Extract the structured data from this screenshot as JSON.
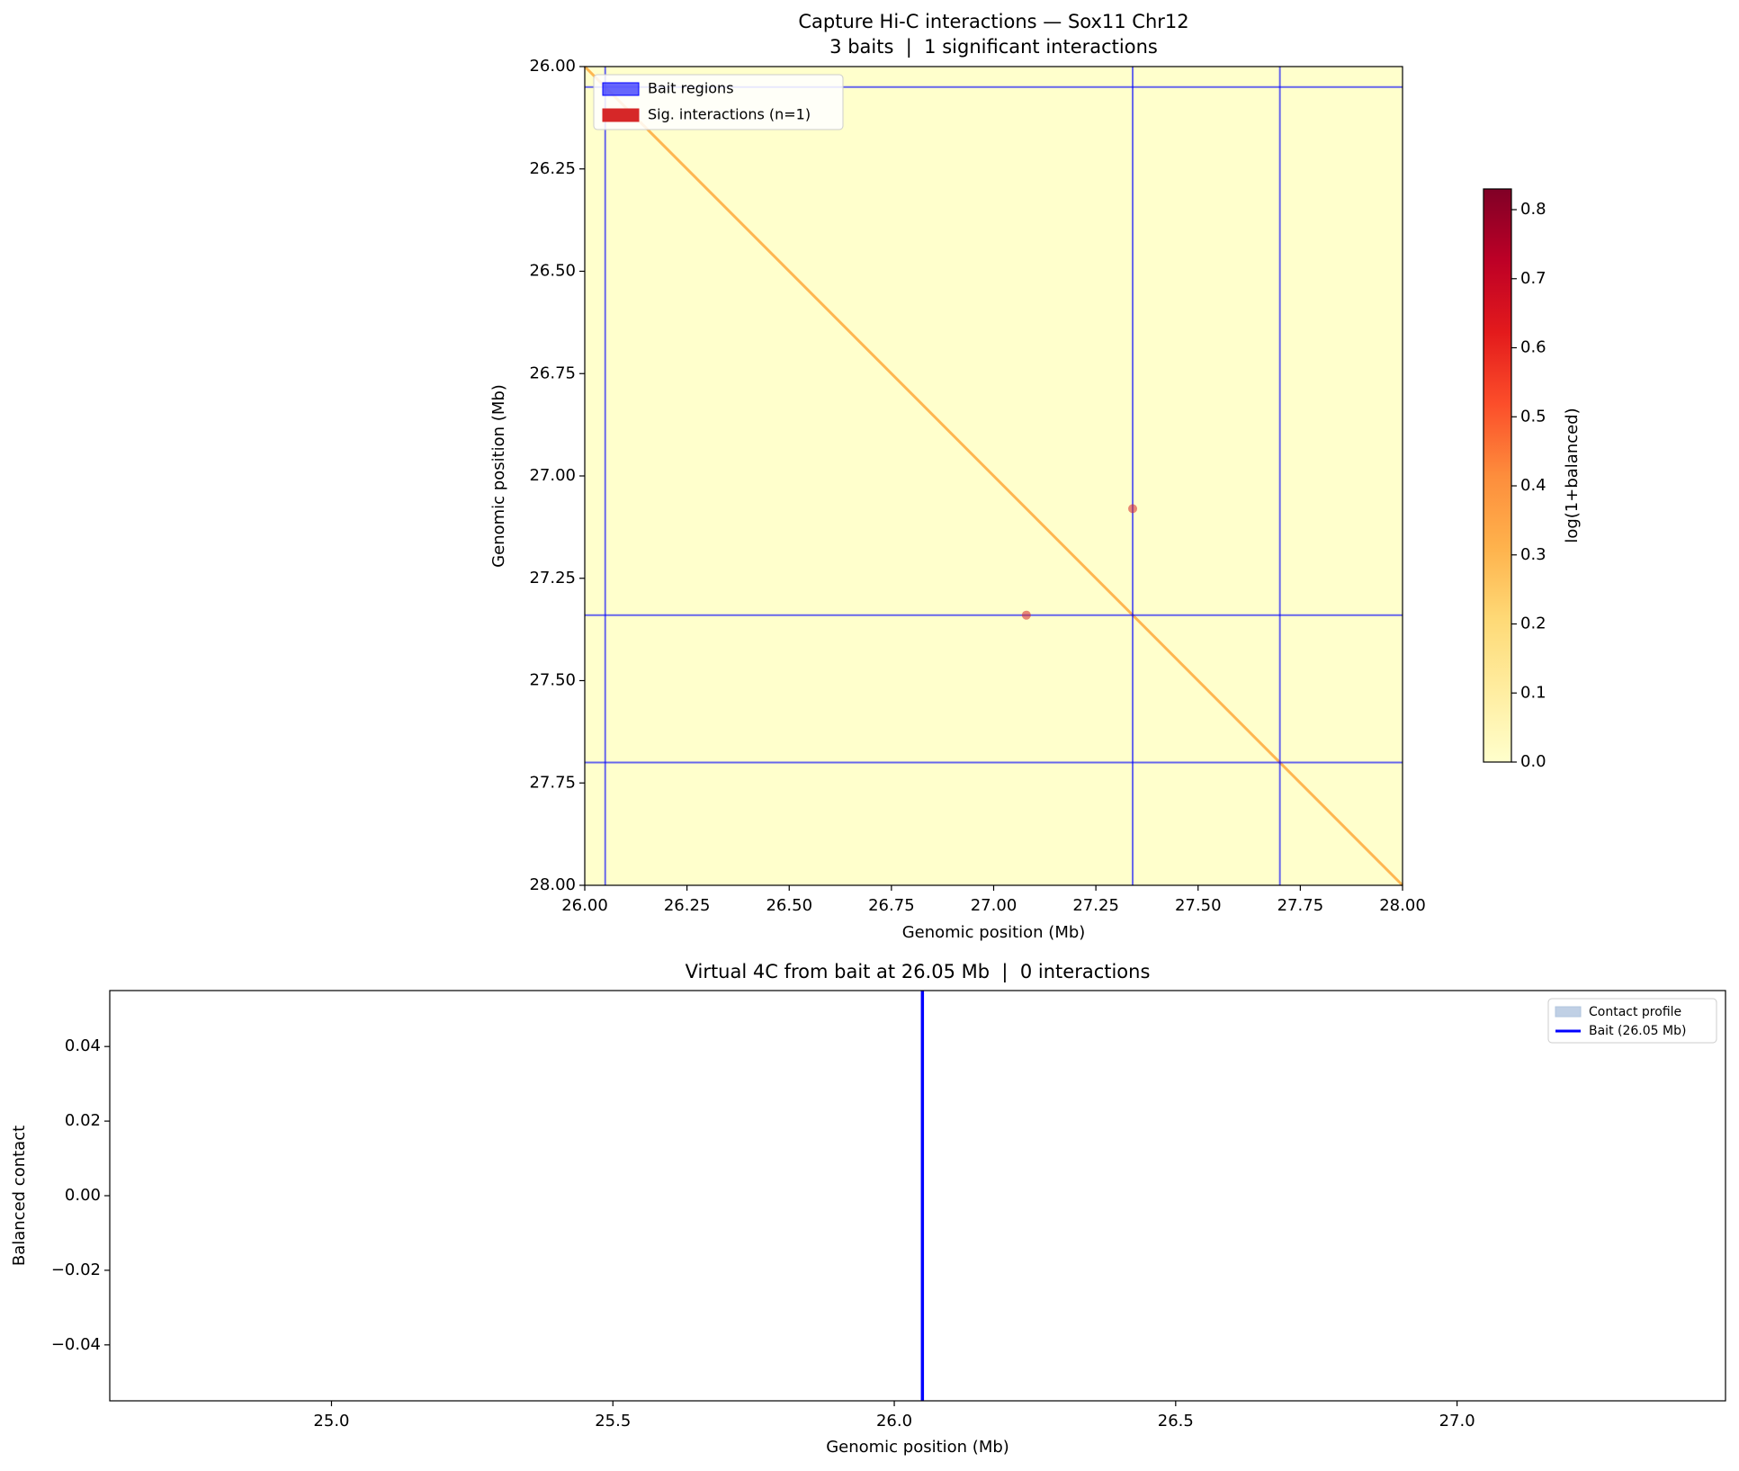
{
  "chart_data": [
    {
      "type": "heatmap",
      "title": "Capture Hi-C interactions — Sox11 Chr12",
      "subtitle": "3 baits  |  1 significant interactions",
      "xlabel": "Genomic position (Mb)",
      "ylabel": "Genomic position (Mb)",
      "xlim": [
        26,
        28
      ],
      "ylim": [
        26,
        28
      ],
      "y_inverted": true,
      "xticks": [
        {
          "value": 26,
          "label": "26.00"
        },
        {
          "value": 26.25,
          "label": "26.25"
        },
        {
          "value": 26.5,
          "label": "26.50"
        },
        {
          "value": 26.75,
          "label": "26.75"
        },
        {
          "value": 27,
          "label": "27.00"
        },
        {
          "value": 27.25,
          "label": "27.25"
        },
        {
          "value": 27.5,
          "label": "27.50"
        },
        {
          "value": 27.75,
          "label": "27.75"
        },
        {
          "value": 28,
          "label": "28.00"
        }
      ],
      "yticks": [
        {
          "value": 26,
          "label": "26.00"
        },
        {
          "value": 26.25,
          "label": "26.25"
        },
        {
          "value": 26.5,
          "label": "26.50"
        },
        {
          "value": 26.75,
          "label": "26.75"
        },
        {
          "value": 27,
          "label": "27.00"
        },
        {
          "value": 27.25,
          "label": "27.25"
        },
        {
          "value": 27.5,
          "label": "27.50"
        },
        {
          "value": 27.75,
          "label": "27.75"
        },
        {
          "value": 28,
          "label": "28.00"
        }
      ],
      "diagonal_value": 0.3,
      "colorbar": {
        "label": "log(1+balanced)",
        "colormap": "YlOrRd",
        "lim": [
          0,
          0.83
        ],
        "ticks": [
          {
            "value": 0,
            "label": "0.0"
          },
          {
            "value": 0.1,
            "label": "0.1"
          },
          {
            "value": 0.2,
            "label": "0.2"
          },
          {
            "value": 0.3,
            "label": "0.3"
          },
          {
            "value": 0.4,
            "label": "0.4"
          },
          {
            "value": 0.5,
            "label": "0.5"
          },
          {
            "value": 0.6,
            "label": "0.6"
          },
          {
            "value": 0.7,
            "label": "0.7"
          },
          {
            "value": 0.8,
            "label": "0.8"
          }
        ]
      },
      "baits": {
        "name": "Bait regions",
        "color": "#0000ff",
        "positions": [
          26.05,
          27.34,
          27.7
        ]
      },
      "significant": {
        "name": "Sig. interactions (n=1)",
        "color": "#d62728",
        "x": [
          27.34,
          27.08
        ],
        "y": [
          27.08,
          27.34
        ]
      },
      "legend": "upper left"
    },
    {
      "type": "line",
      "title": "Virtual 4C from bait at 26.05 Mb  |  0 interactions",
      "xlabel": "Genomic position (Mb)",
      "ylabel": "Balanced contact",
      "xlim": [
        24.606,
        27.477
      ],
      "ylim": [
        -0.055,
        0.055
      ],
      "xticks": [
        {
          "value": 25,
          "label": "25.0"
        },
        {
          "value": 25.5,
          "label": "25.5"
        },
        {
          "value": 26,
          "label": "26.0"
        },
        {
          "value": 26.5,
          "label": "26.5"
        },
        {
          "value": 27,
          "label": "27.0"
        }
      ],
      "yticks": [
        {
          "value": -0.04,
          "label": "−0.04"
        },
        {
          "value": -0.02,
          "label": "−0.02"
        },
        {
          "value": 0,
          "label": "0.00"
        },
        {
          "value": 0.02,
          "label": "0.02"
        },
        {
          "value": 0.04,
          "label": "0.04"
        }
      ],
      "series": [
        {
          "name": "Contact profile",
          "color": "#b0c4de",
          "values": []
        }
      ],
      "bait": {
        "name": "Bait (26.05 Mb)",
        "color": "#0000ff",
        "x": 26.05
      },
      "legend": "upper right"
    }
  ]
}
